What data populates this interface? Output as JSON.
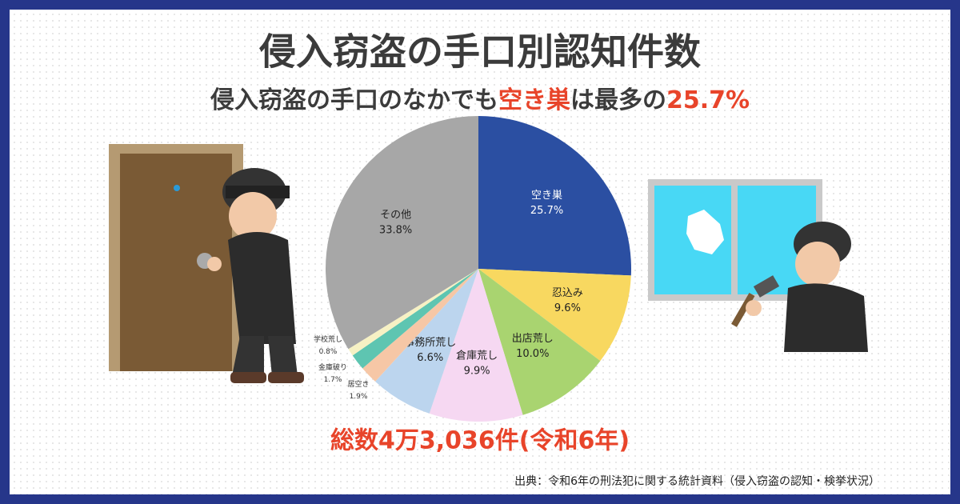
{
  "chart_data": {
    "type": "pie",
    "title": "侵入窃盗の手口別認知件数",
    "subtitle": [
      "侵入窃盗の手口のなかでも",
      "空き巣",
      "は最多の",
      "25.7%"
    ],
    "categories": [
      "空き巣",
      "忍込み",
      "出店荒し",
      "倉庫荒し",
      "事務所荒し",
      "居空き",
      "金庫破り",
      "学校荒し",
      "その他"
    ],
    "values": [
      25.7,
      9.6,
      10.0,
      9.9,
      6.6,
      1.9,
      1.7,
      0.8,
      33.8
    ],
    "value_labels": [
      "25.7%",
      "9.6%",
      "10.0%",
      "9.9%",
      "6.6%",
      "1.9%",
      "1.7%",
      "0.8%",
      "33.8%"
    ],
    "colors": [
      "#2b4fa2",
      "#f8d860",
      "#a9d470",
      "#f6d8f2",
      "#bcd5ee",
      "#f6c7a6",
      "#5ec5b1",
      "#f6f1c4",
      "#a7a7a7"
    ],
    "total_note": "総数4万3,036件(令和6年)",
    "source": "出典：令和6年の刑法犯に関する統計資料（侵入窃盗の認知・検挙状況）"
  }
}
